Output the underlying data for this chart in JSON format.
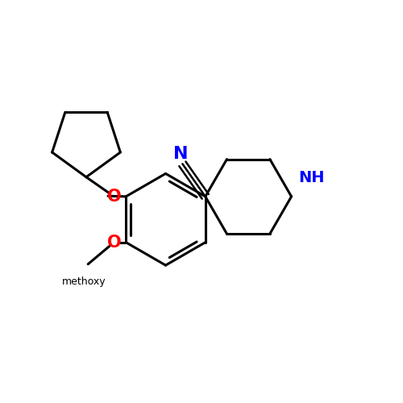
{
  "background_color": "#ffffff",
  "bond_color": "#000000",
  "bond_width": 2.2,
  "atom_colors": {
    "N": "#0000ff",
    "O": "#ff0000",
    "C": "#000000"
  },
  "font_size_atom": 14,
  "font_size_NH": 14,
  "xlim": [
    0,
    10
  ],
  "ylim": [
    0,
    10
  ]
}
